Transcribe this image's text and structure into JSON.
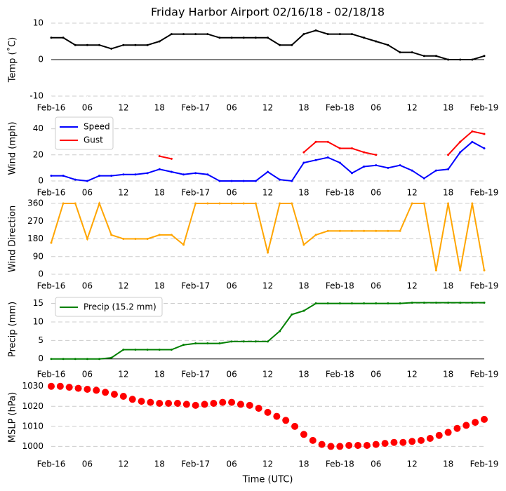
{
  "chart_data": [
    {
      "type": "line",
      "title": "Friday Harbor Airport 02/16/18 - 02/18/18",
      "ylabel": "Temp (˚C)",
      "x": [
        0,
        2,
        4,
        6,
        8,
        10,
        12,
        14,
        16,
        18,
        20,
        22,
        24,
        26,
        28,
        30,
        32,
        34,
        36,
        38,
        40,
        42,
        44,
        46,
        48,
        50,
        52,
        54,
        56,
        58,
        60,
        62,
        64,
        66,
        68,
        70,
        72
      ],
      "series": [
        {
          "name": null,
          "color": "#000000",
          "values": [
            6,
            6,
            4,
            4,
            4,
            3,
            4,
            4,
            4,
            5,
            7,
            7,
            7,
            7,
            6,
            6,
            6,
            6,
            6,
            4,
            4,
            7,
            8,
            7,
            7,
            7,
            6,
            5,
            4,
            2,
            2,
            1,
            1,
            0,
            0,
            0,
            1
          ]
        }
      ],
      "xlim": [
        0,
        72
      ],
      "ylim": [
        -10,
        10
      ],
      "yticks": [
        -10,
        0,
        10
      ],
      "grid": true,
      "xticks": [
        {
          "value": 0,
          "label": "Feb-16"
        },
        {
          "value": 6,
          "label": "06"
        },
        {
          "value": 12,
          "label": "12"
        },
        {
          "value": 18,
          "label": "18"
        },
        {
          "value": 24,
          "label": "Feb-17"
        },
        {
          "value": 30,
          "label": "06"
        },
        {
          "value": 36,
          "label": "12"
        },
        {
          "value": 42,
          "label": "18"
        },
        {
          "value": 48,
          "label": "Feb-18"
        },
        {
          "value": 54,
          "label": "06"
        },
        {
          "value": 60,
          "label": "12"
        },
        {
          "value": 66,
          "label": "18"
        },
        {
          "value": 72,
          "label": "Feb-19"
        }
      ]
    },
    {
      "type": "line",
      "ylabel": "Wind (mph)",
      "legend": "upper left",
      "x": [
        0,
        2,
        4,
        6,
        8,
        10,
        12,
        14,
        16,
        18,
        20,
        22,
        24,
        26,
        28,
        30,
        32,
        34,
        36,
        38,
        40,
        42,
        44,
        46,
        48,
        50,
        52,
        54,
        56,
        58,
        60,
        62,
        64,
        66,
        68,
        70,
        72
      ],
      "series": [
        {
          "name": "Speed",
          "color": "#0000ff",
          "values": [
            4,
            4,
            1,
            0,
            4,
            4,
            5,
            5,
            6,
            9,
            7,
            5,
            6,
            5,
            0,
            0,
            0,
            0,
            7,
            1,
            0,
            14,
            16,
            18,
            14,
            6,
            11,
            12,
            10,
            12,
            8,
            2,
            8,
            9,
            22,
            30,
            25
          ]
        },
        {
          "name": "Gust",
          "color": "#ff0000",
          "values": [
            null,
            null,
            null,
            null,
            null,
            null,
            null,
            null,
            null,
            19,
            17,
            null,
            null,
            null,
            null,
            null,
            null,
            null,
            null,
            null,
            null,
            22,
            30,
            30,
            25,
            25,
            22,
            20,
            null,
            null,
            null,
            null,
            null,
            20,
            30,
            38,
            36
          ]
        }
      ],
      "xlim": [
        0,
        72
      ],
      "ylim": [
        0,
        50
      ],
      "yticks": [
        0,
        20,
        40
      ],
      "grid": true,
      "xticks": [
        {
          "value": 0,
          "label": "Feb-16"
        },
        {
          "value": 6,
          "label": "06"
        },
        {
          "value": 12,
          "label": "12"
        },
        {
          "value": 18,
          "label": "18"
        },
        {
          "value": 24,
          "label": "Feb-17"
        },
        {
          "value": 30,
          "label": "06"
        },
        {
          "value": 36,
          "label": "12"
        },
        {
          "value": 42,
          "label": "18"
        },
        {
          "value": 48,
          "label": "Feb-18"
        },
        {
          "value": 54,
          "label": "06"
        },
        {
          "value": 60,
          "label": "12"
        },
        {
          "value": 66,
          "label": "18"
        },
        {
          "value": 72,
          "label": "Feb-19"
        }
      ]
    },
    {
      "type": "line",
      "ylabel": "Wind Direction",
      "x": [
        0,
        2,
        4,
        6,
        8,
        10,
        12,
        14,
        16,
        18,
        20,
        22,
        24,
        26,
        28,
        30,
        32,
        34,
        36,
        38,
        40,
        42,
        44,
        46,
        48,
        50,
        52,
        54,
        56,
        58,
        60,
        62,
        64,
        66,
        68,
        70,
        72
      ],
      "series": [
        {
          "name": null,
          "color": "#ffa500",
          "values": [
            160,
            360,
            360,
            180,
            360,
            200,
            180,
            180,
            180,
            200,
            200,
            150,
            360,
            360,
            360,
            360,
            360,
            360,
            110,
            360,
            360,
            150,
            200,
            220,
            220,
            220,
            220,
            220,
            220,
            220,
            360,
            360,
            20,
            360,
            20,
            360,
            20
          ]
        }
      ],
      "xlim": [
        0,
        72
      ],
      "ylim": [
        0,
        360
      ],
      "yticks": [
        0,
        90,
        180,
        270,
        360
      ],
      "grid": true,
      "xticks": [
        {
          "value": 0,
          "label": "Feb-16"
        },
        {
          "value": 6,
          "label": "06"
        },
        {
          "value": 12,
          "label": "12"
        },
        {
          "value": 18,
          "label": "18"
        },
        {
          "value": 24,
          "label": "Feb-17"
        },
        {
          "value": 30,
          "label": "06"
        },
        {
          "value": 36,
          "label": "12"
        },
        {
          "value": 42,
          "label": "18"
        },
        {
          "value": 48,
          "label": "Feb-18"
        },
        {
          "value": 54,
          "label": "06"
        },
        {
          "value": 60,
          "label": "12"
        },
        {
          "value": 66,
          "label": "18"
        },
        {
          "value": 72,
          "label": "Feb-19"
        }
      ]
    },
    {
      "type": "line",
      "ylabel": "Precip (mm)",
      "legend": "upper left",
      "x": [
        0,
        2,
        4,
        6,
        8,
        10,
        12,
        14,
        16,
        18,
        20,
        22,
        24,
        26,
        28,
        30,
        32,
        34,
        36,
        38,
        40,
        42,
        44,
        46,
        48,
        50,
        52,
        54,
        56,
        58,
        60,
        62,
        64,
        66,
        68,
        70,
        72
      ],
      "series": [
        {
          "name": "Precip (15.2 mm)",
          "color": "#008000",
          "values": [
            0,
            0,
            0,
            0,
            0,
            0.3,
            2.5,
            2.5,
            2.5,
            2.5,
            2.5,
            3.8,
            4.2,
            4.2,
            4.2,
            4.7,
            4.7,
            4.7,
            4.7,
            7.5,
            12,
            13,
            15,
            15,
            15,
            15,
            15,
            15,
            15,
            15,
            15.2,
            15.2,
            15.2,
            15.2,
            15.2,
            15.2,
            15.2
          ]
        }
      ],
      "xlim": [
        0,
        72
      ],
      "ylim": [
        -1,
        17
      ],
      "yticks": [
        0,
        5,
        10,
        15
      ],
      "grid": true,
      "xticks": [
        {
          "value": 0,
          "label": "Feb-16"
        },
        {
          "value": 6,
          "label": "06"
        },
        {
          "value": 12,
          "label": "12"
        },
        {
          "value": 18,
          "label": "18"
        },
        {
          "value": 24,
          "label": "Feb-17"
        },
        {
          "value": 30,
          "label": "06"
        },
        {
          "value": 36,
          "label": "12"
        },
        {
          "value": 42,
          "label": "18"
        },
        {
          "value": 48,
          "label": "Feb-18"
        },
        {
          "value": 54,
          "label": "06"
        },
        {
          "value": 60,
          "label": "12"
        },
        {
          "value": 66,
          "label": "18"
        },
        {
          "value": 72,
          "label": "Feb-19"
        }
      ]
    },
    {
      "type": "scatter",
      "ylabel": "MSLP (hPa)",
      "xlabel": "Time (UTC)",
      "x": [
        0,
        1.5,
        3,
        4.5,
        6,
        7.5,
        9,
        10.5,
        12,
        13.5,
        15,
        16.5,
        18,
        19.5,
        21,
        22.5,
        24,
        25.5,
        27,
        28.5,
        30,
        31.5,
        33,
        34.5,
        36,
        37.5,
        39,
        40.5,
        42,
        43.5,
        45,
        46.5,
        48,
        49.5,
        51,
        52.5,
        54,
        55.5,
        57,
        58.5,
        60,
        61.5,
        63,
        64.5,
        66,
        67.5,
        69,
        70.5,
        72
      ],
      "series": [
        {
          "name": null,
          "color": "#ff0000",
          "values": [
            1030,
            1030,
            1029.5,
            1029,
            1028.5,
            1028,
            1027,
            1026,
            1025,
            1023.5,
            1022.5,
            1022,
            1021.5,
            1021.5,
            1021.5,
            1021,
            1020.5,
            1021,
            1021.5,
            1022,
            1022,
            1021,
            1020.5,
            1019,
            1017,
            1015,
            1013,
            1010,
            1006,
            1003,
            1001,
            1000,
            1000,
            1000.5,
            1000.5,
            1000.5,
            1001,
            1001.5,
            1002,
            1002,
            1002.5,
            1003,
            1004,
            1005.5,
            1007,
            1009,
            1010.5,
            1012,
            1013.5
          ]
        }
      ],
      "xlim": [
        0,
        72
      ],
      "ylim": [
        997,
        1032
      ],
      "yticks": [
        1000,
        1010,
        1020,
        1030
      ],
      "grid": true,
      "xticks": [
        {
          "value": 0,
          "label": "Feb-16"
        },
        {
          "value": 6,
          "label": "06"
        },
        {
          "value": 12,
          "label": "12"
        },
        {
          "value": 18,
          "label": "18"
        },
        {
          "value": 24,
          "label": "Feb-17"
        },
        {
          "value": 30,
          "label": "06"
        },
        {
          "value": 36,
          "label": "12"
        },
        {
          "value": 42,
          "label": "18"
        },
        {
          "value": 48,
          "label": "Feb-18"
        },
        {
          "value": 54,
          "label": "06"
        },
        {
          "value": 60,
          "label": "12"
        },
        {
          "value": 66,
          "label": "18"
        },
        {
          "value": 72,
          "label": "Feb-19"
        }
      ]
    }
  ]
}
